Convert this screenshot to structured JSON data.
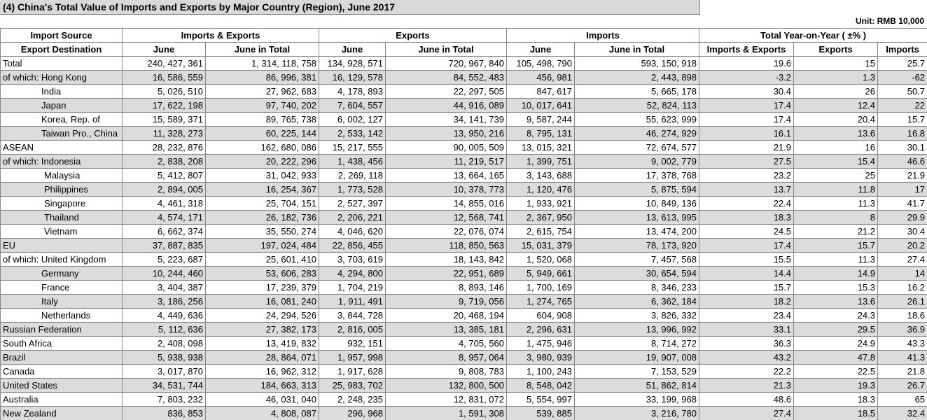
{
  "header": {
    "title": "(4) China's Total Value of Imports and Exports by Major Country (Region), June 2017",
    "unit": "Unit: RMB 10,000"
  },
  "table": {
    "header_row1": [
      "Import Source",
      "Imports & Exports",
      "Exports",
      "Imports",
      "Total Year-on-Year ( ±% )"
    ],
    "header_row2": [
      "Export Destination",
      "June",
      "June in Total",
      "June",
      "June in Total",
      "June",
      "June in Total",
      "Imports & Exports",
      "Exports",
      "Imports"
    ],
    "rows": [
      [
        "Total",
        "240, 427, 361",
        "1, 314, 118, 758",
        "134, 928, 571",
        "720, 967, 840",
        "105, 498, 790",
        "593, 150, 918",
        "19.6",
        "15",
        "25.7"
      ],
      [
        "of which: Hong Kong",
        "16, 586, 559",
        "86, 996, 381",
        "16, 129, 578",
        "84, 552, 483",
        "456, 981",
        "2, 443, 898",
        "-3.2",
        "1.3",
        "-62"
      ],
      [
        "India",
        "5, 026, 510",
        "27, 962, 683",
        "4, 178, 893",
        "22, 297, 505",
        "847, 617",
        "5, 665, 178",
        "30.4",
        "26",
        "50.7"
      ],
      [
        "Japan",
        "17, 622, 198",
        "97, 740, 202",
        "7, 604, 557",
        "44, 916, 089",
        "10, 017, 641",
        "52, 824, 113",
        "17.4",
        "12.4",
        "22"
      ],
      [
        "Korea, Rep. of",
        "15, 589, 371",
        "89, 765, 738",
        "6, 002, 127",
        "34, 141, 739",
        "9, 587, 244",
        "55, 623, 999",
        "17.4",
        "20.4",
        "15.7"
      ],
      [
        "Taiwan Pro., China",
        "11, 328, 273",
        "60, 225, 144",
        "2, 533, 142",
        "13, 950, 216",
        "8, 795, 131",
        "46, 274, 929",
        "16.1",
        "13.6",
        "16.8"
      ],
      [
        "ASEAN",
        "28, 232, 876",
        "162, 680, 086",
        "15, 217, 555",
        "90, 005, 509",
        "13, 015, 321",
        "72, 674, 577",
        "21.9",
        "16",
        "30.1"
      ],
      [
        "of which: Indonesia",
        "2, 838, 208",
        "20, 222, 296",
        "1, 438, 456",
        "11, 219, 517",
        "1, 399, 751",
        "9, 002, 779",
        "27.5",
        "15.4",
        "46.6"
      ],
      [
        "Malaysia",
        "5, 412, 807",
        "31, 042, 933",
        "2, 269, 118",
        "13, 664, 165",
        "3, 143, 688",
        "17, 378, 768",
        "23.2",
        "25",
        "21.9"
      ],
      [
        "Philippines",
        "2, 894, 005",
        "16, 254, 367",
        "1, 773, 528",
        "10, 378, 773",
        "1, 120, 476",
        "5, 875, 594",
        "13.7",
        "11.8",
        "17"
      ],
      [
        "Singapore",
        "4, 461, 318",
        "25, 704, 151",
        "2, 527, 397",
        "14, 855, 016",
        "1, 933, 921",
        "10, 849, 136",
        "22.4",
        "11.3",
        "41.7"
      ],
      [
        "Thailand",
        "4, 574, 171",
        "26, 182, 736",
        "2, 206, 221",
        "12, 568, 741",
        "2, 367, 950",
        "13, 613, 995",
        "18.3",
        "8",
        "29.9"
      ],
      [
        "Vietnam",
        "6, 662, 374",
        "35, 550, 274",
        "4, 046, 620",
        "22, 076, 074",
        "2, 615, 754",
        "13, 474, 200",
        "24.5",
        "21.2",
        "30.4"
      ],
      [
        "EU",
        "37, 887, 835",
        "197, 024, 484",
        "22, 856, 455",
        "118, 850, 563",
        "15, 031, 379",
        "78, 173, 920",
        "17.4",
        "15.7",
        "20.2"
      ],
      [
        "of which: United Kingdom",
        "5, 223, 687",
        "25, 601, 410",
        "3, 703, 619",
        "18, 143, 842",
        "1, 520, 068",
        "7, 457, 568",
        "15.5",
        "11.3",
        "27.4"
      ],
      [
        "Germany",
        "10, 244, 460",
        "53, 606, 283",
        "4, 294, 800",
        "22, 951, 689",
        "5, 949, 661",
        "30, 654, 594",
        "14.4",
        "14.9",
        "14"
      ],
      [
        "France",
        "3, 404, 387",
        "17, 239, 379",
        "1, 704, 219",
        "8, 893, 146",
        "1, 700, 169",
        "8, 346, 233",
        "15.7",
        "15.3",
        "16.2"
      ],
      [
        "Italy",
        "3, 186, 256",
        "16, 081, 240",
        "1, 911, 491",
        "9, 719, 056",
        "1, 274, 765",
        "6, 362, 184",
        "18.2",
        "13.6",
        "26.1"
      ],
      [
        "Netherlands",
        "4, 449, 636",
        "24, 294, 526",
        "3, 844, 728",
        "20, 468, 194",
        "604, 908",
        "3, 826, 332",
        "23.4",
        "24.3",
        "18.6"
      ],
      [
        "Russian Federation",
        "5, 112, 636",
        "27, 382, 173",
        "2, 816, 005",
        "13, 385, 181",
        "2, 296, 631",
        "13, 996, 992",
        "33.1",
        "29.5",
        "36.9"
      ],
      [
        "South Africa",
        "2, 408, 098",
        "13, 419, 832",
        "932, 151",
        "4, 705, 560",
        "1, 475, 946",
        "8, 714, 272",
        "36.3",
        "24.9",
        "43.3"
      ],
      [
        "Brazil",
        "5, 938, 938",
        "28, 864, 071",
        "1, 957, 998",
        "8, 957, 064",
        "3, 980, 939",
        "19, 907, 008",
        "43.2",
        "47.8",
        "41.3"
      ],
      [
        "Canada",
        "3, 017, 870",
        "16, 962, 312",
        "1, 917, 628",
        "9, 808, 783",
        "1, 100, 243",
        "7, 153, 529",
        "22.2",
        "22.5",
        "21.8"
      ],
      [
        "United States",
        "34, 531, 744",
        "184, 663, 313",
        "25, 983, 702",
        "132, 800, 500",
        "8, 548, 042",
        "51, 862, 814",
        "21.3",
        "19.3",
        "26.7"
      ],
      [
        "Australia",
        "7, 803, 232",
        "46, 031, 040",
        "2, 248, 235",
        "12, 831, 072",
        "5, 554, 997",
        "33, 199, 968",
        "48.6",
        "18.3",
        "65"
      ],
      [
        "New Zealand",
        "836, 853",
        "4, 808, 087",
        "296, 968",
        "1, 591, 308",
        "539, 885",
        "3, 216, 780",
        "27.4",
        "18.5",
        "32.4"
      ]
    ]
  }
}
